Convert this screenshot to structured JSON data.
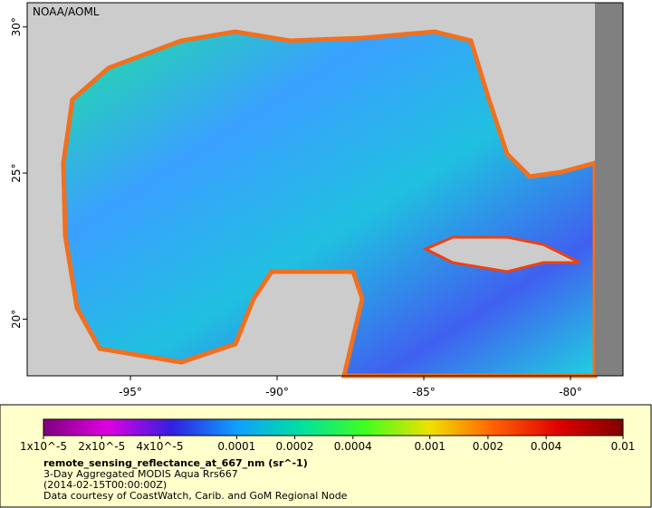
{
  "map": {
    "credit": "NOAA/AOML",
    "xlim": [
      -98.52,
      -78.21
    ],
    "ylim": [
      18.06,
      30.83
    ],
    "xticks": [
      {
        "value": -95,
        "label": "-95°"
      },
      {
        "value": -90,
        "label": "-90°"
      },
      {
        "value": -85,
        "label": "-85°"
      },
      {
        "value": -80,
        "label": "-80°"
      }
    ],
    "yticks": [
      {
        "value": 20,
        "label": "20°"
      },
      {
        "value": 25,
        "label": "25°"
      },
      {
        "value": 30,
        "label": "30°"
      }
    ]
  },
  "colorbar": {
    "scale": "log",
    "lim": [
      1e-05,
      0.01
    ],
    "ticks": [
      {
        "value": 1e-05,
        "label": "1x10^-5"
      },
      {
        "value": 2e-05,
        "label": "2x10^-5"
      },
      {
        "value": 4e-05,
        "label": "4x10^-5"
      },
      0.0001,
      0.0002,
      0.0004,
      0.001,
      0.002,
      0.004,
      0.01
    ],
    "colors": [
      "#7f007f",
      "#e000e0",
      "#3020e0",
      "#10a0ff",
      "#00e0a0",
      "#40ff20",
      "#f0e000",
      "#ff6000",
      "#e00000",
      "#800000"
    ]
  },
  "legend": {
    "variable": "remote_sensing_reflectance_at_667_nm (sr^-1)",
    "lines": [
      "3-Day Aggregated MODIS Aqua Rrs667",
      "(2014-02-15T00:00:00Z)",
      "Data courtesy of CoastWatch, Carib. and GoM Regional Node"
    ]
  }
}
